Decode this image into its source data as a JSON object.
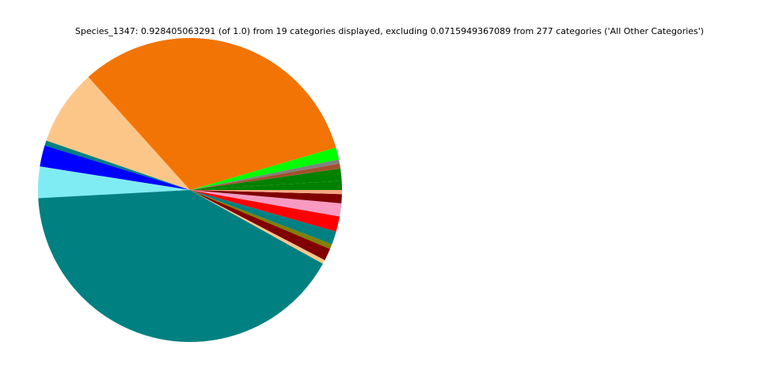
{
  "chart_data": {
    "type": "pie",
    "title": "Species_1347: 0.928405063291 (of 1.0) from 19 categories displayed, excluding 0.0715949367089 from 277 categories ('All Other Categories')",
    "values": [
      0.009,
      0.012,
      0.005,
      0.004,
      0.012,
      0.299,
      0.075,
      0.005,
      0.021,
      0.031,
      0.382,
      0.004,
      0.012,
      0.005,
      0.013,
      0.015,
      0.013,
      0.009,
      0.004
    ],
    "colors": [
      "#008000",
      "#008000",
      "#a0522d",
      "#808080",
      "#00ff00",
      "#f27405",
      "#fdc689",
      "#008080",
      "#0000ff",
      "#7fecf4",
      "#008080",
      "#fdc689",
      "#800000",
      "#808000",
      "#008080",
      "#ff0000",
      "#f69ac1",
      "#800000",
      "#f4a582"
    ],
    "start_angle": 0,
    "counterclockwise": true
  }
}
